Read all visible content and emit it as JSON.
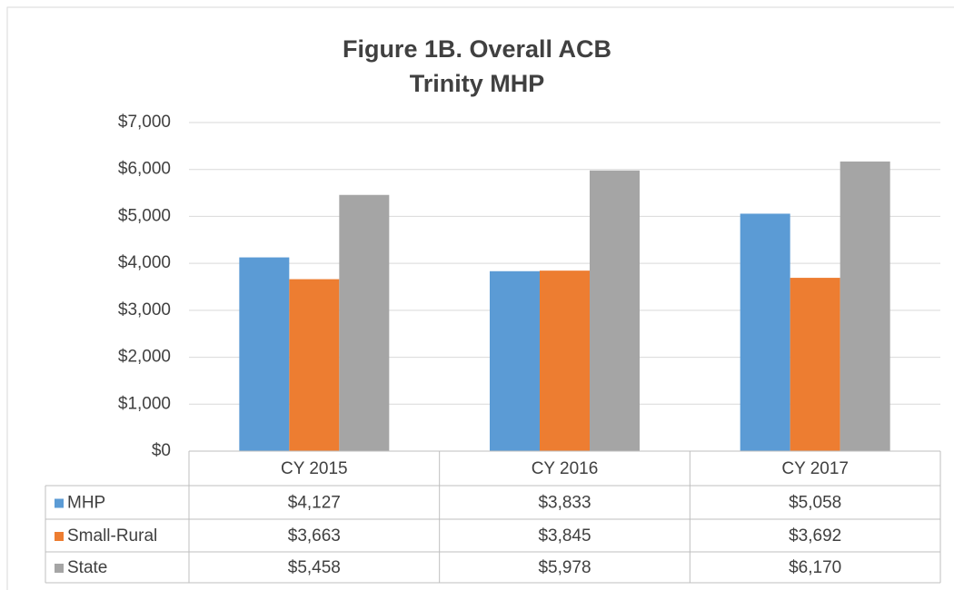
{
  "chart_data": {
    "type": "bar",
    "title": "Figure 1B. Overall ACB",
    "subtitle": "Trinity MHP",
    "categories": [
      "CY 2015",
      "CY 2016",
      "CY 2017"
    ],
    "series": [
      {
        "name": "MHP",
        "color": "#5b9bd5",
        "values": [
          4127,
          3833,
          5058
        ],
        "value_labels": [
          "$4,127",
          "$3,833",
          "$5,058"
        ]
      },
      {
        "name": "Small-Rural",
        "color": "#ed7d31",
        "values": [
          3663,
          3845,
          3692
        ],
        "value_labels": [
          "$3,663",
          "$3,845",
          "$3,692"
        ]
      },
      {
        "name": "State",
        "color": "#a5a5a5",
        "values": [
          5458,
          5978,
          6170
        ],
        "value_labels": [
          "$5,458",
          "$5,978",
          "$6,170"
        ]
      }
    ],
    "ylim": [
      0,
      7000
    ],
    "yticks": [
      {
        "value": 0,
        "label": "$0"
      },
      {
        "value": 1000,
        "label": "$1,000"
      },
      {
        "value": 2000,
        "label": "$2,000"
      },
      {
        "value": 3000,
        "label": "$3,000"
      },
      {
        "value": 4000,
        "label": "$4,000"
      },
      {
        "value": 5000,
        "label": "$5,000"
      },
      {
        "value": 6000,
        "label": "$6,000"
      },
      {
        "value": 7000,
        "label": "$7,000"
      }
    ],
    "grid": true
  }
}
